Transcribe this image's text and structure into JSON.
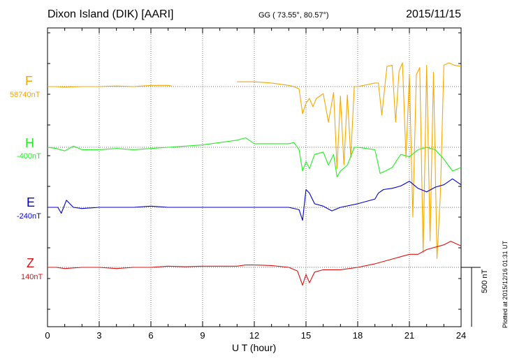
{
  "header": {
    "station": "Dixon Island (DIK)  [AARI]",
    "coords": "GG ( 73.55°,  80.57°)",
    "date": "2015/11/15"
  },
  "components": [
    {
      "letter": "F",
      "baseline": "58740nT",
      "color": "#f5a800"
    },
    {
      "letter": "H",
      "baseline": "-400nT",
      "color": "#22ee22"
    },
    {
      "letter": "E",
      "baseline": "-240nT",
      "color": "#0000cc"
    },
    {
      "letter": "Z",
      "baseline": "140nT",
      "color": "#e01010"
    }
  ],
  "scale_label": "500 nT",
  "plotted_label": "Plotted at 2015/12/16 01:31 UT",
  "chart_data": {
    "type": "line",
    "xlabel": "U T (hour)",
    "xlim": [
      0,
      24
    ],
    "xticks": [
      "0",
      "3",
      "6",
      "9",
      "12",
      "15",
      "18",
      "21",
      "24"
    ],
    "scale_bar_nT": 500,
    "series": [
      {
        "name": "F",
        "color": "#f5a800",
        "baseline_nT": 58740,
        "gaps": [
          [
            7.2,
            11.0
          ]
        ],
        "points": [
          [
            0,
            0
          ],
          [
            0.5,
            0
          ],
          [
            1,
            -5
          ],
          [
            2,
            0
          ],
          [
            3,
            0
          ],
          [
            4,
            5
          ],
          [
            5,
            0
          ],
          [
            6,
            10
          ],
          [
            7,
            10
          ],
          [
            7.2,
            5
          ],
          [
            11,
            40
          ],
          [
            11.5,
            40
          ],
          [
            12,
            40
          ],
          [
            13,
            30
          ],
          [
            14,
            10
          ],
          [
            14.3,
            0
          ],
          [
            14.6,
            -20
          ],
          [
            14.8,
            -230
          ],
          [
            15,
            -140
          ],
          [
            15.2,
            -100
          ],
          [
            15.4,
            -170
          ],
          [
            15.6,
            -100
          ],
          [
            16,
            -60
          ],
          [
            16.3,
            -300
          ],
          [
            16.6,
            -50
          ],
          [
            16.8,
            -690
          ],
          [
            17,
            -80
          ],
          [
            17.2,
            -660
          ],
          [
            17.4,
            -70
          ],
          [
            17.6,
            -600
          ],
          [
            17.8,
            0
          ],
          [
            18,
            0
          ],
          [
            19,
            30
          ],
          [
            19.2,
            30
          ],
          [
            19.4,
            -240
          ],
          [
            19.7,
            170
          ],
          [
            20,
            180
          ],
          [
            20.2,
            -300
          ],
          [
            20.4,
            130
          ],
          [
            20.6,
            200
          ],
          [
            20.8,
            -600
          ],
          [
            21,
            100
          ],
          [
            21.2,
            -1100
          ],
          [
            21.4,
            100
          ],
          [
            21.6,
            160
          ],
          [
            21.8,
            -1400
          ],
          [
            22,
            180
          ],
          [
            22.2,
            -1300
          ],
          [
            22.4,
            120
          ],
          [
            22.6,
            -1450
          ],
          [
            22.8,
            -900
          ],
          [
            23,
            180
          ],
          [
            23.3,
            200
          ],
          [
            23.6,
            180
          ],
          [
            24,
            170
          ]
        ]
      },
      {
        "name": "H",
        "color": "#22ee22",
        "baseline_nT": -400,
        "points": [
          [
            0,
            0
          ],
          [
            0.5,
            -10
          ],
          [
            1,
            -30
          ],
          [
            1.5,
            10
          ],
          [
            2,
            -20
          ],
          [
            3,
            -20
          ],
          [
            4,
            -10
          ],
          [
            5,
            -20
          ],
          [
            6,
            -10
          ],
          [
            7,
            0
          ],
          [
            8,
            10
          ],
          [
            9,
            20
          ],
          [
            10,
            40
          ],
          [
            11,
            60
          ],
          [
            11.5,
            80
          ],
          [
            12,
            30
          ],
          [
            13,
            30
          ],
          [
            14,
            30
          ],
          [
            14.3,
            40
          ],
          [
            14.6,
            -20
          ],
          [
            14.8,
            -200
          ],
          [
            15,
            -120
          ],
          [
            15.2,
            -180
          ],
          [
            15.5,
            -60
          ],
          [
            16,
            -40
          ],
          [
            16.3,
            -150
          ],
          [
            16.6,
            -60
          ],
          [
            16.8,
            -250
          ],
          [
            17,
            -200
          ],
          [
            17.4,
            -150
          ],
          [
            17.8,
            0
          ],
          [
            18,
            0
          ],
          [
            19,
            -20
          ],
          [
            19.3,
            -220
          ],
          [
            19.6,
            -200
          ],
          [
            20,
            -170
          ],
          [
            20.5,
            -60
          ],
          [
            21,
            -80
          ],
          [
            21.5,
            -20
          ],
          [
            22,
            0
          ],
          [
            22.5,
            -20
          ],
          [
            23,
            -100
          ],
          [
            23.5,
            -200
          ],
          [
            24,
            -170
          ]
        ]
      },
      {
        "name": "E",
        "color": "#0000cc",
        "baseline_nT": -240,
        "points": [
          [
            0,
            0
          ],
          [
            0.6,
            0
          ],
          [
            0.8,
            -50
          ],
          [
            1.1,
            60
          ],
          [
            1.5,
            0
          ],
          [
            2,
            -10
          ],
          [
            3,
            0
          ],
          [
            4,
            0
          ],
          [
            5,
            0
          ],
          [
            6,
            10
          ],
          [
            7,
            0
          ],
          [
            8,
            0
          ],
          [
            9,
            0
          ],
          [
            10,
            0
          ],
          [
            11,
            0
          ],
          [
            12,
            0
          ],
          [
            13,
            0
          ],
          [
            14,
            0
          ],
          [
            14.6,
            -20
          ],
          [
            14.8,
            -110
          ],
          [
            15,
            150
          ],
          [
            15.2,
            120
          ],
          [
            15.5,
            30
          ],
          [
            16,
            10
          ],
          [
            16.5,
            -30
          ],
          [
            17,
            0
          ],
          [
            18,
            30
          ],
          [
            19,
            70
          ],
          [
            19.2,
            120
          ],
          [
            19.5,
            150
          ],
          [
            20,
            160
          ],
          [
            20.5,
            180
          ],
          [
            21,
            220
          ],
          [
            21.5,
            160
          ],
          [
            22,
            130
          ],
          [
            22.5,
            170
          ],
          [
            23,
            190
          ],
          [
            23.5,
            240
          ],
          [
            24,
            190
          ]
        ]
      },
      {
        "name": "Z",
        "color": "#e01010",
        "baseline_nT": 140,
        "points": [
          [
            0,
            0
          ],
          [
            0.5,
            0
          ],
          [
            1,
            -10
          ],
          [
            2,
            0
          ],
          [
            3,
            0
          ],
          [
            4,
            -10
          ],
          [
            5,
            0
          ],
          [
            6,
            0
          ],
          [
            7,
            10
          ],
          [
            8,
            5
          ],
          [
            9,
            10
          ],
          [
            10,
            10
          ],
          [
            11,
            10
          ],
          [
            11.5,
            20
          ],
          [
            12,
            20
          ],
          [
            13,
            15
          ],
          [
            14,
            0
          ],
          [
            14.5,
            -30
          ],
          [
            14.8,
            -150
          ],
          [
            15,
            -60
          ],
          [
            15.2,
            -130
          ],
          [
            15.5,
            -40
          ],
          [
            16,
            -20
          ],
          [
            17,
            -20
          ],
          [
            18,
            0
          ],
          [
            19,
            30
          ],
          [
            20,
            70
          ],
          [
            20.5,
            90
          ],
          [
            21,
            110
          ],
          [
            21.5,
            110
          ],
          [
            22,
            150
          ],
          [
            23,
            190
          ],
          [
            23.4,
            220
          ],
          [
            24,
            180
          ]
        ]
      }
    ]
  }
}
